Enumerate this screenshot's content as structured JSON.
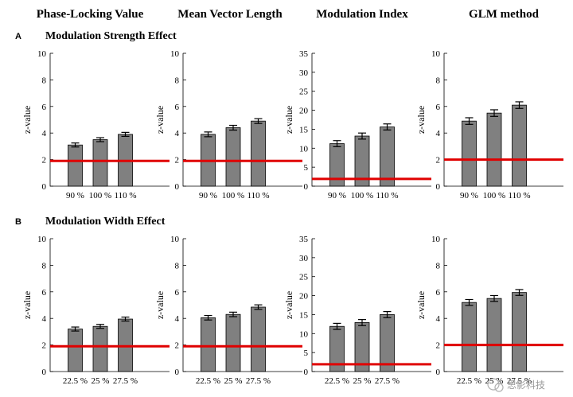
{
  "column_titles": [
    "Phase-Locking Value",
    "Mean Vector Length",
    "Modulation Index",
    "GLM method"
  ],
  "rows": [
    {
      "label": "A",
      "title": "Modulation Strength Effect"
    },
    {
      "label": "B",
      "title": "Modulation Width Effect"
    }
  ],
  "watermark": "思影科技",
  "colors": {
    "bar": "#808080",
    "threshold_line": "#e00000"
  },
  "chart_data": [
    {
      "type": "bar",
      "ylabel": "z-value",
      "categories": [
        "90 %",
        "100 %",
        "110 %"
      ],
      "values": [
        3.1,
        3.5,
        3.9
      ],
      "errors": [
        0.15,
        0.15,
        0.15
      ],
      "ylim": [
        0,
        10
      ],
      "yticks": [
        0,
        2,
        4,
        6,
        8,
        10
      ],
      "threshold": 1.9
    },
    {
      "type": "bar",
      "ylabel": "z-value",
      "categories": [
        "90 %",
        "100 %",
        "110 %"
      ],
      "values": [
        3.9,
        4.4,
        4.9
      ],
      "errors": [
        0.18,
        0.18,
        0.18
      ],
      "ylim": [
        0,
        10
      ],
      "yticks": [
        0,
        2,
        4,
        6,
        8,
        10
      ],
      "threshold": 1.9
    },
    {
      "type": "bar",
      "ylabel": "z-value",
      "categories": [
        "90 %",
        "100 %",
        "110 %"
      ],
      "values": [
        11.2,
        13.2,
        15.6
      ],
      "errors": [
        0.8,
        0.8,
        0.8
      ],
      "ylim": [
        0,
        35
      ],
      "yticks": [
        0,
        5,
        10,
        15,
        20,
        25,
        30,
        35
      ],
      "threshold": 1.9
    },
    {
      "type": "bar",
      "ylabel": "z-value",
      "categories": [
        "90 %",
        "100 %",
        "110 %"
      ],
      "values": [
        4.9,
        5.5,
        6.1
      ],
      "errors": [
        0.25,
        0.25,
        0.25
      ],
      "ylim": [
        0,
        10
      ],
      "yticks": [
        0,
        2,
        4,
        6,
        8,
        10
      ],
      "threshold": 2.0
    },
    {
      "type": "bar",
      "ylabel": "z-value",
      "categories": [
        "22.5 %",
        "25 %",
        "27.5 %"
      ],
      "values": [
        3.2,
        3.4,
        3.95
      ],
      "errors": [
        0.15,
        0.15,
        0.15
      ],
      "ylim": [
        0,
        10
      ],
      "yticks": [
        0,
        2,
        4,
        6,
        8,
        10
      ],
      "threshold": 1.9
    },
    {
      "type": "bar",
      "ylabel": "z-value",
      "categories": [
        "22.5 %",
        "25 %",
        "27.5 %"
      ],
      "values": [
        4.05,
        4.3,
        4.85
      ],
      "errors": [
        0.17,
        0.17,
        0.17
      ],
      "ylim": [
        0,
        10
      ],
      "yticks": [
        0,
        2,
        4,
        6,
        8,
        10
      ],
      "threshold": 1.9
    },
    {
      "type": "bar",
      "ylabel": "z-value",
      "categories": [
        "22.5 %",
        "25 %",
        "27.5 %"
      ],
      "values": [
        11.9,
        12.9,
        15.0
      ],
      "errors": [
        0.8,
        0.8,
        0.8
      ],
      "ylim": [
        0,
        35
      ],
      "yticks": [
        0,
        5,
        10,
        15,
        20,
        25,
        30,
        35
      ],
      "threshold": 1.9
    },
    {
      "type": "bar",
      "ylabel": "z-value",
      "categories": [
        "22.5 %",
        "25 %",
        "27.5 %"
      ],
      "values": [
        5.2,
        5.5,
        5.95
      ],
      "errors": [
        0.22,
        0.22,
        0.22
      ],
      "ylim": [
        0,
        10
      ],
      "yticks": [
        0,
        2,
        4,
        6,
        8,
        10
      ],
      "threshold": 2.0
    }
  ]
}
